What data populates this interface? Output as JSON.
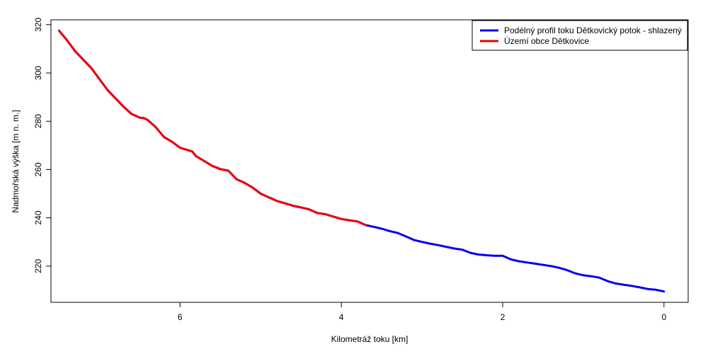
{
  "chart_data": {
    "type": "line",
    "title": "",
    "xlabel": "Kilometráž toku [km]",
    "ylabel": "Nadmořská výška [m n. m.]",
    "xlim": [
      7.6,
      -0.3
    ],
    "ylim": [
      205,
      322
    ],
    "x_reversed": true,
    "xticks": [
      6,
      4,
      2,
      0
    ],
    "xtick_labels": [
      "6",
      "4",
      "2",
      "0"
    ],
    "yticks": [
      220,
      240,
      260,
      280,
      300,
      320
    ],
    "ytick_labels": [
      "220",
      "240",
      "260",
      "280",
      "300",
      "320"
    ],
    "grid": false,
    "legend_position": "top-right",
    "series": [
      {
        "name": "Podélný profil toku Dětkovický potok - shlazený",
        "color": "#0000ee",
        "points": [
          [
            7.5,
            317.5
          ],
          [
            7.4,
            313.5
          ],
          [
            7.3,
            309
          ],
          [
            7.2,
            305.5
          ],
          [
            7.1,
            302
          ],
          [
            7.0,
            297.5
          ],
          [
            6.9,
            293
          ],
          [
            6.8,
            289.5
          ],
          [
            6.7,
            286
          ],
          [
            6.6,
            283
          ],
          [
            6.5,
            281.5
          ],
          [
            6.45,
            281.3
          ],
          [
            6.4,
            280.5
          ],
          [
            6.3,
            277.5
          ],
          [
            6.2,
            273.5
          ],
          [
            6.1,
            271.5
          ],
          [
            6.0,
            269
          ],
          [
            5.9,
            268
          ],
          [
            5.85,
            267.5
          ],
          [
            5.8,
            265.5
          ],
          [
            5.7,
            263.5
          ],
          [
            5.6,
            261.5
          ],
          [
            5.5,
            260.2
          ],
          [
            5.4,
            259.5
          ],
          [
            5.3,
            256
          ],
          [
            5.2,
            254.5
          ],
          [
            5.1,
            252.5
          ],
          [
            5.0,
            250
          ],
          [
            4.9,
            248.5
          ],
          [
            4.8,
            247
          ],
          [
            4.7,
            246
          ],
          [
            4.6,
            245
          ],
          [
            4.5,
            244.3
          ],
          [
            4.4,
            243.5
          ],
          [
            4.3,
            242
          ],
          [
            4.2,
            241.5
          ],
          [
            4.1,
            240.5
          ],
          [
            4.0,
            239.5
          ],
          [
            3.9,
            239
          ],
          [
            3.8,
            238.5
          ],
          [
            3.7,
            237
          ],
          [
            3.6,
            236.3
          ],
          [
            3.5,
            235.5
          ],
          [
            3.4,
            234.5
          ],
          [
            3.3,
            233.7
          ],
          [
            3.2,
            232.3
          ],
          [
            3.1,
            230.8
          ],
          [
            3.0,
            230
          ],
          [
            2.9,
            229.3
          ],
          [
            2.8,
            228.7
          ],
          [
            2.7,
            228
          ],
          [
            2.6,
            227.3
          ],
          [
            2.5,
            226.8
          ],
          [
            2.4,
            225.5
          ],
          [
            2.3,
            224.8
          ],
          [
            2.2,
            224.5
          ],
          [
            2.1,
            224.3
          ],
          [
            2.0,
            224.3
          ],
          [
            1.9,
            222.8
          ],
          [
            1.8,
            222
          ],
          [
            1.7,
            221.5
          ],
          [
            1.6,
            221
          ],
          [
            1.5,
            220.5
          ],
          [
            1.4,
            220
          ],
          [
            1.3,
            219.3
          ],
          [
            1.2,
            218.3
          ],
          [
            1.1,
            217
          ],
          [
            1.0,
            216.2
          ],
          [
            0.9,
            215.8
          ],
          [
            0.8,
            215.2
          ],
          [
            0.7,
            213.8
          ],
          [
            0.6,
            212.8
          ],
          [
            0.5,
            212.3
          ],
          [
            0.4,
            211.8
          ],
          [
            0.3,
            211.2
          ],
          [
            0.2,
            210.5
          ],
          [
            0.1,
            210.2
          ],
          [
            0.0,
            209.5
          ]
        ]
      },
      {
        "name": "Území obce Dětkovice",
        "color": "#ee0000",
        "points": [
          [
            7.5,
            317.5
          ],
          [
            7.4,
            313.5
          ],
          [
            7.3,
            309
          ],
          [
            7.2,
            305.5
          ],
          [
            7.1,
            302
          ],
          [
            7.0,
            297.5
          ],
          [
            6.9,
            293
          ],
          [
            6.8,
            289.5
          ],
          [
            6.7,
            286
          ],
          [
            6.6,
            283
          ],
          [
            6.5,
            281.5
          ],
          [
            6.45,
            281.3
          ],
          [
            6.4,
            280.5
          ],
          [
            6.3,
            277.5
          ],
          [
            6.2,
            273.5
          ],
          [
            6.1,
            271.5
          ],
          [
            6.0,
            269
          ],
          [
            5.9,
            268
          ],
          [
            5.85,
            267.5
          ],
          [
            5.8,
            265.5
          ],
          [
            5.7,
            263.5
          ],
          [
            5.6,
            261.5
          ],
          [
            5.5,
            260.2
          ],
          [
            5.4,
            259.5
          ],
          [
            5.3,
            256
          ],
          [
            5.2,
            254.5
          ],
          [
            5.1,
            252.5
          ],
          [
            5.0,
            250
          ],
          [
            4.9,
            248.5
          ],
          [
            4.8,
            247
          ],
          [
            4.7,
            246
          ],
          [
            4.6,
            245
          ],
          [
            4.5,
            244.3
          ],
          [
            4.4,
            243.5
          ],
          [
            4.3,
            242
          ],
          [
            4.2,
            241.5
          ],
          [
            4.1,
            240.5
          ],
          [
            4.0,
            239.5
          ],
          [
            3.9,
            239
          ],
          [
            3.8,
            238.5
          ],
          [
            3.7,
            237
          ]
        ]
      }
    ]
  }
}
